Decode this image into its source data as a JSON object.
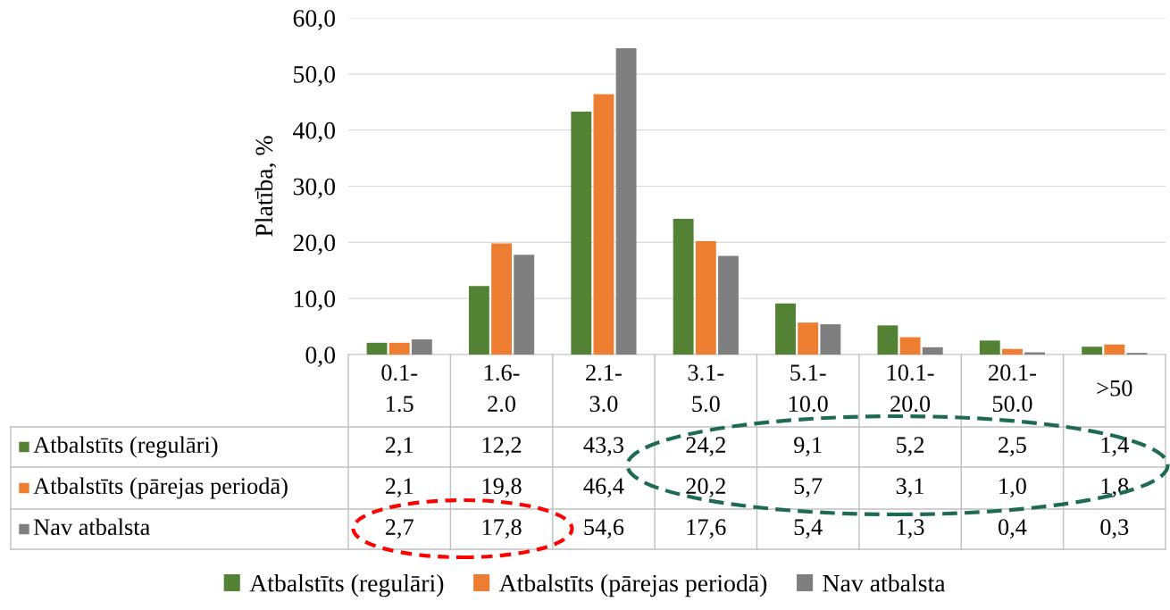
{
  "chart_data": {
    "type": "bar",
    "ylabel": "Platība, %",
    "categories": [
      "0.1-\n1.5",
      "1.6-\n2.0",
      "2.1-\n3.0",
      "3.1-\n5.0",
      "5.1-\n10.0",
      "10.1-\n20.0",
      "20.1-\n50.0",
      ">50"
    ],
    "series": [
      {
        "name": "Atbalstīts (regulāri)",
        "color": "#548235",
        "values": [
          2.1,
          12.2,
          43.3,
          24.2,
          9.1,
          5.2,
          2.5,
          1.4
        ],
        "value_labels": [
          "2,1",
          "12,2",
          "43,3",
          "24,2",
          "9,1",
          "5,2",
          "2,5",
          "1,4"
        ]
      },
      {
        "name": "Atbalstīts (pārejas periodā)",
        "color": "#ed7d31",
        "values": [
          2.1,
          19.8,
          46.4,
          20.2,
          5.7,
          3.1,
          1.0,
          1.8
        ],
        "value_labels": [
          "2,1",
          "19,8",
          "46,4",
          "20,2",
          "5,7",
          "3,1",
          "1,0",
          "1,8"
        ]
      },
      {
        "name": "Nav atbalsta",
        "color": "#7f7f7f",
        "values": [
          2.7,
          17.8,
          54.6,
          17.6,
          5.4,
          1.3,
          0.4,
          0.3
        ],
        "value_labels": [
          "2,7",
          "17,8",
          "54,6",
          "17,6",
          "5,4",
          "1,3",
          "0,4",
          "0,3"
        ]
      }
    ],
    "ylim": [
      0,
      60
    ],
    "yticks": [
      {
        "value": 0,
        "label": "0,0"
      },
      {
        "value": 10,
        "label": "10,0"
      },
      {
        "value": 20,
        "label": "20,0"
      },
      {
        "value": 30,
        "label": "30,0"
      },
      {
        "value": 40,
        "label": "40,0"
      },
      {
        "value": 50,
        "label": "50,0"
      },
      {
        "value": 60,
        "label": "60,0"
      }
    ],
    "grid": "y",
    "legend": "bottom"
  }
}
